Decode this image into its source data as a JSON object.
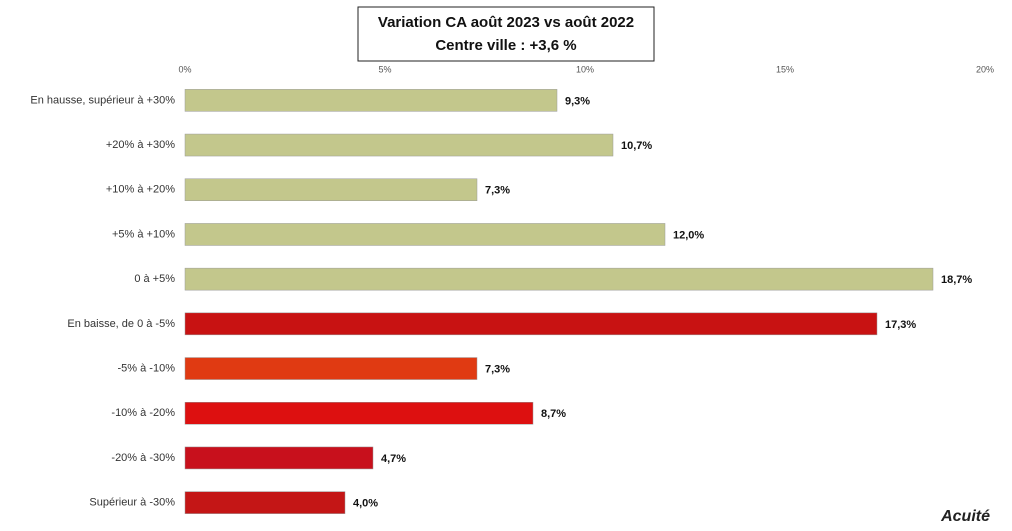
{
  "chart_data": {
    "type": "hbar",
    "title": "Variation CA août 2023 vs août 2022",
    "subtitle": "Centre ville : +3,6 %",
    "categories": [
      "En hausse, supérieur à +30%",
      "+20% à +30%",
      "+10% à +20%",
      "+5% à +10%",
      "0 à +5%",
      "En baisse, de 0 à -5%",
      "-5% à -10%",
      "-10% à -20%",
      "-20% à -30%",
      "Supérieur à -30%"
    ],
    "values": [
      9.3,
      10.7,
      7.3,
      12.0,
      18.7,
      17.3,
      7.3,
      8.7,
      4.7,
      4.0
    ],
    "value_labels": [
      "9,3%",
      "10,7%",
      "7,3%",
      "12,0%",
      "18,7%",
      "17,3%",
      "7,3%",
      "8,7%",
      "4,7%",
      "4,0%"
    ],
    "colors": [
      "#c3c78c",
      "#c3c78c",
      "#c3c78c",
      "#c3c78c",
      "#c3c78c",
      "#c81212",
      "#e03a12",
      "#dd1010",
      "#c8101c",
      "#c41616"
    ],
    "xlim": [
      0,
      20
    ],
    "xticks": [
      {
        "value": 0,
        "label": "0%"
      },
      {
        "value": 5,
        "label": "5%"
      },
      {
        "value": 10,
        "label": "10%"
      },
      {
        "value": 15,
        "label": "15%"
      },
      {
        "value": 20,
        "label": "20%"
      }
    ],
    "logo": "Acuité"
  }
}
